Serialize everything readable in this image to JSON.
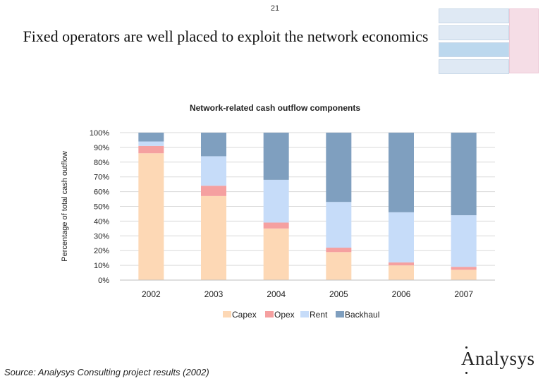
{
  "slide": {
    "page_number": "21",
    "title": "Fixed operators are well placed to exploit the network economics",
    "source": "Source: Analysys Consulting project results (2002)",
    "logo_text": "Analysys"
  },
  "colors": {
    "Capex": "#fdd8b5",
    "Opex": "#f5a0a0",
    "Rent": "#c6dcf9",
    "Backhaul": "#7f9fbf",
    "grid": "#d9d9d9"
  },
  "chart_data": {
    "type": "bar",
    "stacked": true,
    "title": "Network-related cash outflow components",
    "ylabel": "Percentage of total cash outflow",
    "xlabel": "",
    "ylim": [
      0,
      100
    ],
    "yticks": [
      "0%",
      "10%",
      "20%",
      "30%",
      "40%",
      "50%",
      "60%",
      "70%",
      "80%",
      "90%",
      "100%"
    ],
    "ytick_values": [
      0,
      10,
      20,
      30,
      40,
      50,
      60,
      70,
      80,
      90,
      100
    ],
    "categories": [
      "2002",
      "2003",
      "2004",
      "2005",
      "2006",
      "2007"
    ],
    "series": [
      {
        "name": "Capex",
        "values": [
          86,
          57,
          35,
          19,
          10,
          7
        ]
      },
      {
        "name": "Opex",
        "values": [
          5,
          7,
          4,
          3,
          2,
          2
        ]
      },
      {
        "name": "Rent",
        "values": [
          3,
          20,
          29,
          31,
          34,
          35
        ]
      },
      {
        "name": "Backhaul",
        "values": [
          6,
          16,
          32,
          47,
          54,
          56
        ]
      }
    ],
    "grid": true,
    "legend_position": "bottom"
  }
}
